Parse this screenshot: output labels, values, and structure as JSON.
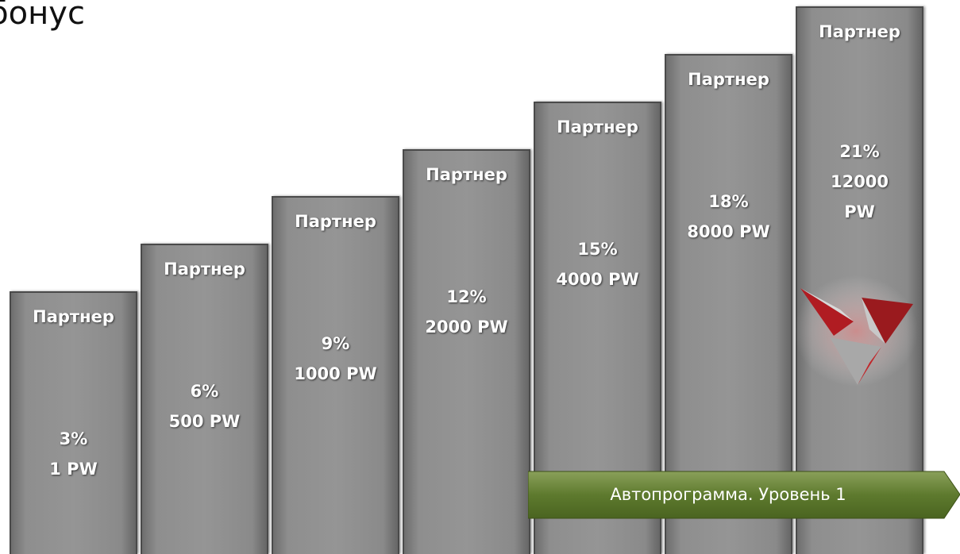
{
  "title": "бонус",
  "steps": [
    {
      "label": "Партнер",
      "percent": "3%",
      "amount": "1 PW"
    },
    {
      "label": "Партнер",
      "percent": "6%",
      "amount": "500 PW"
    },
    {
      "label": "Партнер",
      "percent": "9%",
      "amount": "1000 PW"
    },
    {
      "label": "Партнер",
      "percent": "12%",
      "amount": "2000 PW"
    },
    {
      "label": "Партнер",
      "percent": "15%",
      "amount": "4000 PW"
    },
    {
      "label": "Партнер",
      "percent": "18%",
      "amount": "8000 PW"
    },
    {
      "label": "Партнер",
      "percent": "21%",
      "amount": "12000 PW"
    }
  ],
  "banner": "Автопрограмма. Уровень 1"
}
